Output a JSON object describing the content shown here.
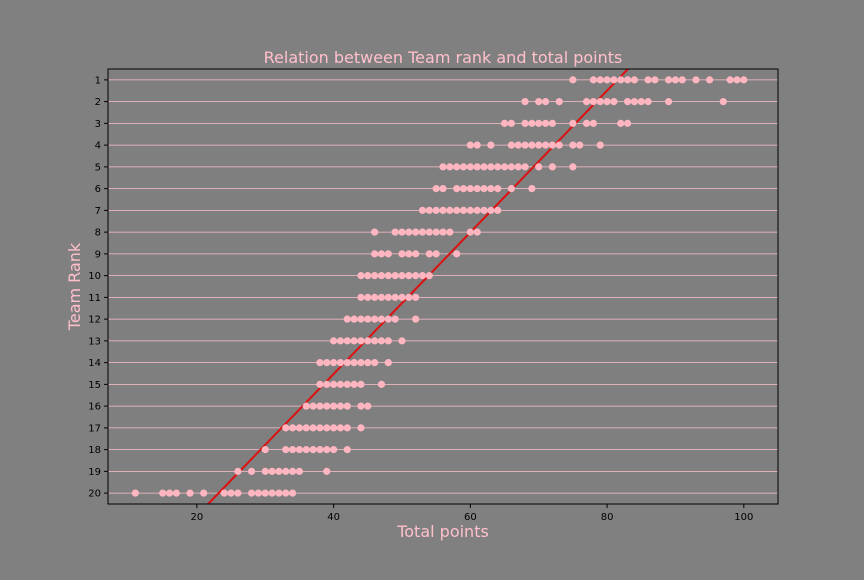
{
  "chart_data": {
    "type": "scatter",
    "title": "Relation between Team rank and total points",
    "xlabel": "Total points",
    "ylabel": "Team Rank",
    "xlim": [
      7,
      105
    ],
    "ylim": [
      20.5,
      0.5
    ],
    "x_ticks": [
      20,
      40,
      60,
      80,
      100
    ],
    "y_ticks": [
      1,
      2,
      3,
      4,
      5,
      6,
      7,
      8,
      9,
      10,
      11,
      12,
      13,
      14,
      15,
      16,
      17,
      18,
      19,
      20
    ],
    "grid": "horizontal",
    "colors": {
      "background": "#808080",
      "axes_face": "#7f7f7f",
      "gridline": "#ffc0cb",
      "points": "#ffb6c1",
      "trend_line": "#dd1111",
      "text": "#ffc0cb"
    },
    "trend_line": {
      "slope": -0.3257,
      "intercept": 27.55
    },
    "series": [
      {
        "points": [
          [
            75,
            1
          ],
          [
            78,
            1
          ],
          [
            79,
            1
          ],
          [
            80,
            1
          ],
          [
            81,
            1
          ],
          [
            82,
            1
          ],
          [
            83,
            1
          ],
          [
            84,
            1
          ],
          [
            86,
            1
          ],
          [
            87,
            1
          ],
          [
            89,
            1
          ],
          [
            90,
            1
          ],
          [
            91,
            1
          ],
          [
            93,
            1
          ],
          [
            95,
            1
          ],
          [
            98,
            1
          ],
          [
            99,
            1
          ],
          [
            100,
            1
          ],
          [
            68,
            2
          ],
          [
            70,
            2
          ],
          [
            71,
            2
          ],
          [
            73,
            2
          ],
          [
            77,
            2
          ],
          [
            78,
            2
          ],
          [
            79,
            2
          ],
          [
            80,
            2
          ],
          [
            81,
            2
          ],
          [
            83,
            2
          ],
          [
            84,
            2
          ],
          [
            85,
            2
          ],
          [
            86,
            2
          ],
          [
            89,
            2
          ],
          [
            97,
            2
          ],
          [
            65,
            3
          ],
          [
            66,
            3
          ],
          [
            68,
            3
          ],
          [
            69,
            3
          ],
          [
            70,
            3
          ],
          [
            71,
            3
          ],
          [
            72,
            3
          ],
          [
            75,
            3
          ],
          [
            77,
            3
          ],
          [
            78,
            3
          ],
          [
            82,
            3
          ],
          [
            83,
            3
          ],
          [
            60,
            4
          ],
          [
            61,
            4
          ],
          [
            63,
            4
          ],
          [
            66,
            4
          ],
          [
            67,
            4
          ],
          [
            68,
            4
          ],
          [
            69,
            4
          ],
          [
            70,
            4
          ],
          [
            71,
            4
          ],
          [
            72,
            4
          ],
          [
            73,
            4
          ],
          [
            75,
            4
          ],
          [
            76,
            4
          ],
          [
            79,
            4
          ],
          [
            56,
            5
          ],
          [
            57,
            5
          ],
          [
            58,
            5
          ],
          [
            59,
            5
          ],
          [
            60,
            5
          ],
          [
            61,
            5
          ],
          [
            62,
            5
          ],
          [
            63,
            5
          ],
          [
            64,
            5
          ],
          [
            65,
            5
          ],
          [
            66,
            5
          ],
          [
            67,
            5
          ],
          [
            68,
            5
          ],
          [
            70,
            5
          ],
          [
            72,
            5
          ],
          [
            75,
            5
          ],
          [
            55,
            6
          ],
          [
            56,
            6
          ],
          [
            58,
            6
          ],
          [
            59,
            6
          ],
          [
            60,
            6
          ],
          [
            61,
            6
          ],
          [
            62,
            6
          ],
          [
            63,
            6
          ],
          [
            64,
            6
          ],
          [
            66,
            6
          ],
          [
            69,
            6
          ],
          [
            53,
            7
          ],
          [
            54,
            7
          ],
          [
            55,
            7
          ],
          [
            56,
            7
          ],
          [
            57,
            7
          ],
          [
            58,
            7
          ],
          [
            59,
            7
          ],
          [
            60,
            7
          ],
          [
            61,
            7
          ],
          [
            62,
            7
          ],
          [
            63,
            7
          ],
          [
            64,
            7
          ],
          [
            46,
            8
          ],
          [
            49,
            8
          ],
          [
            50,
            8
          ],
          [
            51,
            8
          ],
          [
            52,
            8
          ],
          [
            53,
            8
          ],
          [
            54,
            8
          ],
          [
            55,
            8
          ],
          [
            56,
            8
          ],
          [
            57,
            8
          ],
          [
            60,
            8
          ],
          [
            61,
            8
          ],
          [
            46,
            9
          ],
          [
            47,
            9
          ],
          [
            48,
            9
          ],
          [
            50,
            9
          ],
          [
            51,
            9
          ],
          [
            52,
            9
          ],
          [
            54,
            9
          ],
          [
            55,
            9
          ],
          [
            58,
            9
          ],
          [
            44,
            10
          ],
          [
            45,
            10
          ],
          [
            46,
            10
          ],
          [
            47,
            10
          ],
          [
            48,
            10
          ],
          [
            49,
            10
          ],
          [
            50,
            10
          ],
          [
            51,
            10
          ],
          [
            52,
            10
          ],
          [
            53,
            10
          ],
          [
            54,
            10
          ],
          [
            44,
            11
          ],
          [
            45,
            11
          ],
          [
            46,
            11
          ],
          [
            47,
            11
          ],
          [
            48,
            11
          ],
          [
            49,
            11
          ],
          [
            50,
            11
          ],
          [
            51,
            11
          ],
          [
            52,
            11
          ],
          [
            42,
            12
          ],
          [
            43,
            12
          ],
          [
            44,
            12
          ],
          [
            45,
            12
          ],
          [
            46,
            12
          ],
          [
            47,
            12
          ],
          [
            48,
            12
          ],
          [
            49,
            12
          ],
          [
            52,
            12
          ],
          [
            40,
            13
          ],
          [
            41,
            13
          ],
          [
            42,
            13
          ],
          [
            43,
            13
          ],
          [
            44,
            13
          ],
          [
            45,
            13
          ],
          [
            46,
            13
          ],
          [
            47,
            13
          ],
          [
            48,
            13
          ],
          [
            50,
            13
          ],
          [
            38,
            14
          ],
          [
            39,
            14
          ],
          [
            40,
            14
          ],
          [
            41,
            14
          ],
          [
            42,
            14
          ],
          [
            43,
            14
          ],
          [
            44,
            14
          ],
          [
            45,
            14
          ],
          [
            46,
            14
          ],
          [
            48,
            14
          ],
          [
            38,
            15
          ],
          [
            39,
            15
          ],
          [
            40,
            15
          ],
          [
            41,
            15
          ],
          [
            42,
            15
          ],
          [
            43,
            15
          ],
          [
            44,
            15
          ],
          [
            47,
            15
          ],
          [
            36,
            16
          ],
          [
            37,
            16
          ],
          [
            38,
            16
          ],
          [
            39,
            16
          ],
          [
            40,
            16
          ],
          [
            41,
            16
          ],
          [
            42,
            16
          ],
          [
            44,
            16
          ],
          [
            45,
            16
          ],
          [
            33,
            17
          ],
          [
            34,
            17
          ],
          [
            35,
            17
          ],
          [
            36,
            17
          ],
          [
            37,
            17
          ],
          [
            38,
            17
          ],
          [
            39,
            17
          ],
          [
            40,
            17
          ],
          [
            41,
            17
          ],
          [
            42,
            17
          ],
          [
            44,
            17
          ],
          [
            30,
            18
          ],
          [
            33,
            18
          ],
          [
            34,
            18
          ],
          [
            35,
            18
          ],
          [
            36,
            18
          ],
          [
            37,
            18
          ],
          [
            38,
            18
          ],
          [
            39,
            18
          ],
          [
            40,
            18
          ],
          [
            42,
            18
          ],
          [
            26,
            19
          ],
          [
            28,
            19
          ],
          [
            30,
            19
          ],
          [
            31,
            19
          ],
          [
            32,
            19
          ],
          [
            33,
            19
          ],
          [
            34,
            19
          ],
          [
            35,
            19
          ],
          [
            39,
            19
          ],
          [
            11,
            20
          ],
          [
            15,
            20
          ],
          [
            16,
            20
          ],
          [
            17,
            20
          ],
          [
            19,
            20
          ],
          [
            21,
            20
          ],
          [
            24,
            20
          ],
          [
            25,
            20
          ],
          [
            26,
            20
          ],
          [
            28,
            20
          ],
          [
            29,
            20
          ],
          [
            30,
            20
          ],
          [
            31,
            20
          ],
          [
            32,
            20
          ],
          [
            33,
            20
          ],
          [
            34,
            20
          ]
        ]
      }
    ]
  }
}
